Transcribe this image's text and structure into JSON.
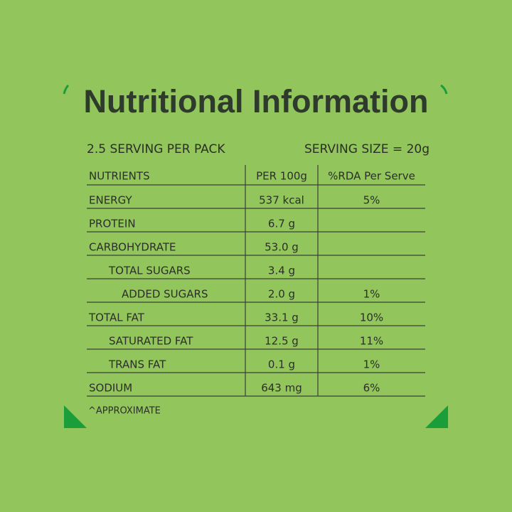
{
  "header": {
    "title": "Nutritional Information",
    "servings": "2.5 SERVING PER PACK",
    "serving_size": "SERVING SIZE = 20g"
  },
  "table": {
    "columns": [
      "NUTRIENTS",
      "PER 100g",
      "%RDA Per Serve"
    ],
    "rows": [
      [
        "ENERGY",
        "537 kcal",
        "5%"
      ],
      [
        "PROTEIN",
        "6.7 g",
        null
      ],
      [
        "CARBOHYDRATE",
        "53.0 g",
        null
      ],
      [
        "TOTAL SUGARS",
        "3.4 g",
        null
      ],
      [
        "ADDED SUGARS",
        "2.0 g",
        "1%"
      ],
      [
        "TOTAL FAT",
        "33.1 g",
        "10%"
      ],
      [
        "SATURATED FAT",
        "12.5 g",
        "11%"
      ],
      [
        "TRANS FAT",
        "0.1 g",
        "1%"
      ],
      [
        "SODIUM",
        "643 mg",
        "6%"
      ]
    ]
  },
  "footnote": "^APPROXIMATE"
}
